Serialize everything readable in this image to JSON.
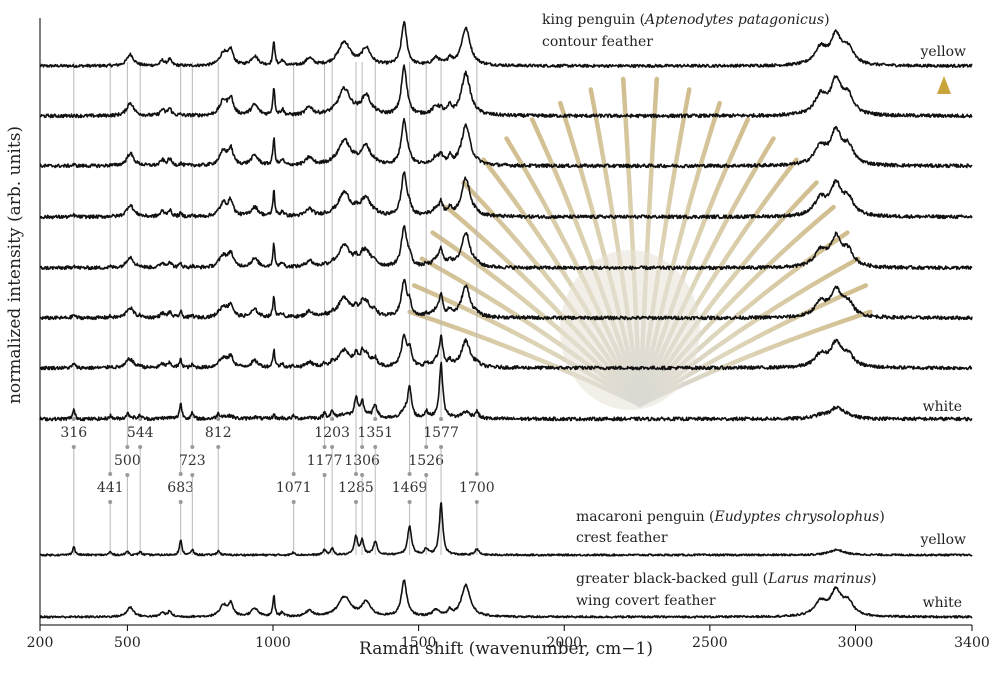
{
  "chart_data": {
    "type": "line",
    "xlabel": "Raman shift (wavenumber, cm−1)",
    "ylabel": "normalized intensity (arb. units)",
    "xlim": [
      200,
      3400
    ],
    "xticks": [
      200,
      500,
      1000,
      1500,
      2000,
      2500,
      3000,
      3400
    ],
    "grid": false,
    "legend": "none",
    "colors": {
      "spectrum": "#111111",
      "arrow": "#c9a43a",
      "marker_line": "#b8b8b8"
    },
    "king_penguin": {
      "title_plain_1": "king penguin (",
      "title_species": "Aptenodytes patagonicus",
      "title_plain_2": ")",
      "subtitle": "contour feather",
      "label_top": "yellow",
      "label_bottom": "white",
      "spectra_count": 8
    },
    "macaroni_penguin": {
      "title_plain_1": "macaroni penguin (",
      "title_species": "Eudyptes chrysolophus",
      "title_plain_2": ")",
      "subtitle": "crest feather",
      "label": "yellow"
    },
    "gull": {
      "title_plain_1": "greater black-backed gull (",
      "title_species": "Larus marinus",
      "title_plain_2": ")",
      "subtitle": "wing covert feather",
      "label": "white"
    },
    "peak_markers": [
      {
        "position": 316,
        "label": "316"
      },
      {
        "position": 441,
        "label": "441"
      },
      {
        "position": 500,
        "label": "500"
      },
      {
        "position": 544,
        "label": "544"
      },
      {
        "position": 683,
        "label": "683"
      },
      {
        "position": 723,
        "label": "723"
      },
      {
        "position": 812,
        "label": "812"
      },
      {
        "position": 1071,
        "label": "1071"
      },
      {
        "position": 1177,
        "label": "1177"
      },
      {
        "position": 1203,
        "label": "1203"
      },
      {
        "position": 1285,
        "label": "1285"
      },
      {
        "position": 1306,
        "label": "1306"
      },
      {
        "position": 1351,
        "label": "1351"
      },
      {
        "position": 1469,
        "label": "1469"
      },
      {
        "position": 1526,
        "label": "1526"
      },
      {
        "position": 1577,
        "label": "1577"
      },
      {
        "position": 1700,
        "label": "1700"
      }
    ],
    "keratin_bands": [
      {
        "center": 510,
        "height": 0.22,
        "width": 14
      },
      {
        "center": 620,
        "height": 0.1,
        "width": 8
      },
      {
        "center": 645,
        "height": 0.12,
        "width": 8
      },
      {
        "center": 830,
        "height": 0.25,
        "width": 15
      },
      {
        "center": 855,
        "height": 0.28,
        "width": 10
      },
      {
        "center": 937,
        "height": 0.18,
        "width": 15
      },
      {
        "center": 1003,
        "height": 0.48,
        "width": 4
      },
      {
        "center": 1032,
        "height": 0.1,
        "width": 6
      },
      {
        "center": 1125,
        "height": 0.14,
        "width": 14
      },
      {
        "center": 1245,
        "height": 0.45,
        "width": 25
      },
      {
        "center": 1320,
        "height": 0.32,
        "width": 18
      },
      {
        "center": 1450,
        "height": 0.82,
        "width": 11
      },
      {
        "center": 1560,
        "height": 0.14,
        "width": 15
      },
      {
        "center": 1607,
        "height": 0.13,
        "width": 8
      },
      {
        "center": 1662,
        "height": 0.72,
        "width": 18
      },
      {
        "center": 2880,
        "height": 0.32,
        "width": 25
      },
      {
        "center": 2933,
        "height": 0.55,
        "width": 22
      },
      {
        "center": 2975,
        "height": 0.3,
        "width": 22
      }
    ],
    "pigment_bands": [
      {
        "center": 316,
        "height": 0.16,
        "width": 5
      },
      {
        "center": 441,
        "height": 0.06,
        "width": 5
      },
      {
        "center": 500,
        "height": 0.08,
        "width": 5
      },
      {
        "center": 544,
        "height": 0.07,
        "width": 5
      },
      {
        "center": 683,
        "height": 0.28,
        "width": 5
      },
      {
        "center": 723,
        "height": 0.1,
        "width": 5
      },
      {
        "center": 812,
        "height": 0.08,
        "width": 6
      },
      {
        "center": 1071,
        "height": 0.05,
        "width": 6
      },
      {
        "center": 1177,
        "height": 0.1,
        "width": 6
      },
      {
        "center": 1203,
        "height": 0.12,
        "width": 6
      },
      {
        "center": 1285,
        "height": 0.35,
        "width": 7
      },
      {
        "center": 1306,
        "height": 0.28,
        "width": 6
      },
      {
        "center": 1351,
        "height": 0.25,
        "width": 8
      },
      {
        "center": 1469,
        "height": 0.55,
        "width": 8
      },
      {
        "center": 1526,
        "height": 0.12,
        "width": 7
      },
      {
        "center": 1577,
        "height": 1.0,
        "width": 7
      },
      {
        "center": 1700,
        "height": 0.12,
        "width": 7
      },
      {
        "center": 2935,
        "height": 0.1,
        "width": 30
      }
    ],
    "king_penguin_pigment_fraction": [
      0.0,
      0.06,
      0.12,
      0.18,
      0.26,
      0.34,
      0.45,
      0.88
    ],
    "king_penguin_keratin_fraction": [
      1.0,
      0.95,
      0.9,
      0.85,
      0.78,
      0.7,
      0.6,
      0.15
    ]
  }
}
